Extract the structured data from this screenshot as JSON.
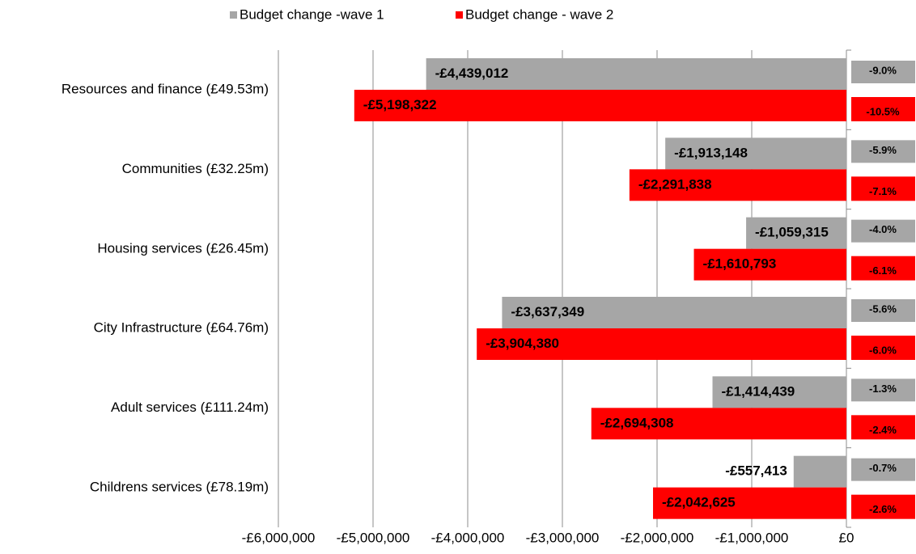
{
  "chart_data": {
    "type": "hbar",
    "categories": [
      "Resources and finance (£49.53m)",
      "Communities  (£32.25m)",
      "Housing services (£26.45m)",
      "City Infrastructure (£64.76m)",
      "Adult services (£111.24m)",
      "Childrens services (£78.19m)"
    ],
    "series": [
      {
        "name": "Budget change -wave 1",
        "color": "#a6a6a6",
        "values": [
          -4439012,
          -1913148,
          -1059315,
          -3637349,
          -1414439,
          -557413
        ],
        "value_labels": [
          "-£4,439,012",
          "-£1,913,148",
          "-£1,059,315",
          "-£3,637,349",
          "-£1,414,439",
          "-£557,413"
        ],
        "percent_labels": [
          "-9.0%",
          "-5.9%",
          "-4.0%",
          "-5.6%",
          "-1.3%",
          "-0.7%"
        ]
      },
      {
        "name": "Budget change - wave 2",
        "color": "#ff0000",
        "values": [
          -5198322,
          -2291838,
          -1610793,
          -3904380,
          -2694308,
          -2042625
        ],
        "value_labels": [
          "-£5,198,322",
          "-£2,291,838",
          "-£1,610,793",
          "-£3,904,380",
          "-£2,694,308",
          "-£2,042,625"
        ],
        "percent_labels": [
          "-10.5%",
          "-7.1%",
          "-6.1%",
          "-6.0%",
          "-2.4%",
          "-2.6%"
        ]
      }
    ],
    "xlim": [
      -6000000,
      0
    ],
    "xticks": [
      {
        "value": -6000000,
        "label": "-£6,000,000"
      },
      {
        "value": -5000000,
        "label": "-£5,000,000"
      },
      {
        "value": -4000000,
        "label": "-£4,000,000"
      },
      {
        "value": -3000000,
        "label": "-£3,000,000"
      },
      {
        "value": -2000000,
        "label": "-£2,000,000"
      },
      {
        "value": -1000000,
        "label": "-£1,000,000"
      },
      {
        "value": 0,
        "label": "£0"
      }
    ],
    "grid": true,
    "legend": "top"
  }
}
